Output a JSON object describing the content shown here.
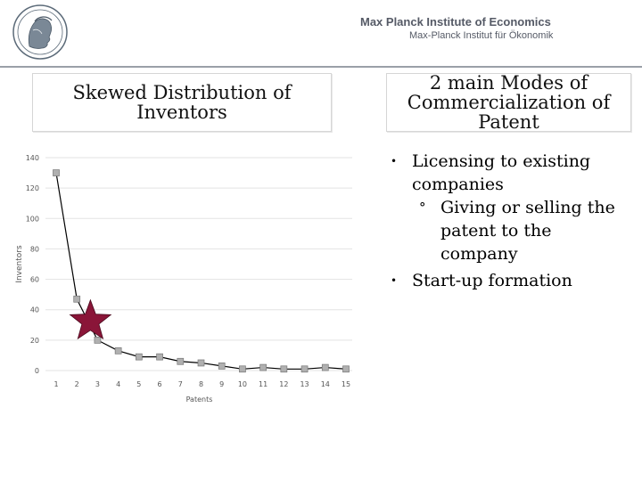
{
  "header": {
    "institute": "Max Planck Institute of Economics",
    "institute_de": "Max-Planck Institut für Ökonomik",
    "logo_icon": "minerva-seal-icon"
  },
  "left_title": [
    "Skewed Distribution of",
    "Inventors"
  ],
  "right_title": [
    "2 main Modes of",
    "Commercialization of",
    "Patent"
  ],
  "bullets": [
    {
      "level": 1,
      "text": "Licensing to existing companies",
      "lines": [
        "Licensing to existing",
        "companies"
      ]
    },
    {
      "level": 2,
      "text": "Giving or selling the patent to the company",
      "lines": [
        "Giving or selling the",
        "patent to the",
        "company"
      ]
    },
    {
      "level": 1,
      "text": "Start-up formation",
      "lines": [
        "Start-up formation"
      ]
    }
  ],
  "bullet_symbols": {
    "level1": "•",
    "level2": "°"
  },
  "chart_data": {
    "type": "line",
    "xlabel": "Patents",
    "ylabel": "Inventors",
    "x": [
      1,
      2,
      3,
      4,
      5,
      6,
      7,
      8,
      9,
      10,
      11,
      12,
      13,
      14,
      15
    ],
    "series": [
      {
        "values": [
          130,
          47,
          20,
          13,
          9,
          9,
          6,
          5,
          3,
          1,
          2,
          1,
          1,
          2,
          1
        ]
      }
    ],
    "yticks": [
      0,
      20,
      40,
      60,
      80,
      100,
      120,
      140
    ],
    "ylim": [
      0,
      140
    ],
    "xlim": [
      1,
      15
    ],
    "grid": true,
    "annotation": {
      "type": "star",
      "x": 3,
      "y": 30,
      "color": "#8a1538"
    },
    "colors": {
      "line": "#000000",
      "marker": "#b0b0b0",
      "grid": "#e3e3e3"
    }
  }
}
